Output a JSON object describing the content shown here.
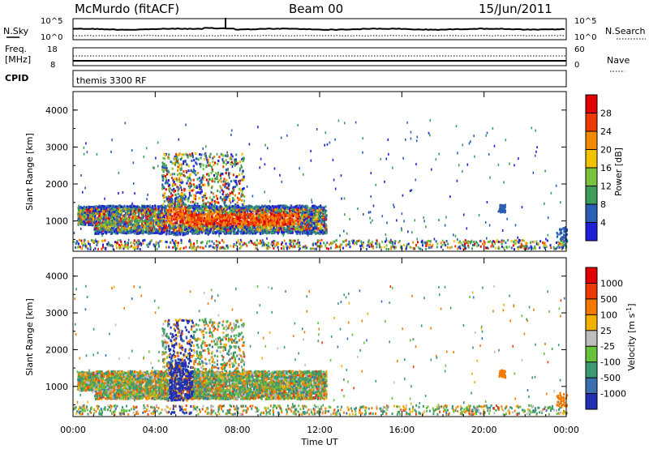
{
  "header": {
    "station": "McMurdo (fitACF)",
    "beam": "Beam 00",
    "date": "15/Jun/2011"
  },
  "top_panels": {
    "nsky_label": "N.Sky",
    "nsky_ticks": [
      "10^5",
      "10^0"
    ],
    "nsearch_label": "N.Search",
    "nsearch_ticks": [
      "10^5",
      "10^0"
    ],
    "freq_label_1": "Freq.",
    "freq_label_2": "[MHz]",
    "freq_ticks": [
      "18",
      "8"
    ],
    "nave_label": "Nave",
    "nave_ticks": [
      "60",
      "0"
    ],
    "cpid_label": "CPID",
    "cpid_value": "themis 3300 RF"
  },
  "chart_data": [
    {
      "type": "heatmap",
      "name": "power-panel",
      "ylabel": "Slant Range [km]",
      "y_ticks": [
        "1000",
        "2000",
        "3000",
        "4000"
      ],
      "ylim": [
        180,
        4500
      ],
      "x_ticks": [
        "00:00",
        "04:00",
        "08:00",
        "12:00",
        "16:00",
        "20:00",
        "00:00"
      ],
      "xlim_hours": [
        0,
        24
      ],
      "colorbar_label": "Power [dB]",
      "colorbar_ticks": [
        "4",
        "8",
        "12",
        "16",
        "20",
        "24",
        "28"
      ],
      "colorbar_colors": [
        "#1f1fd6",
        "#2a5fb4",
        "#3c9e5a",
        "#7ac23e",
        "#f2c200",
        "#f28a00",
        "#ee3a00",
        "#e00000"
      ]
    },
    {
      "type": "heatmap",
      "name": "velocity-panel",
      "ylabel": "Slant Range [km]",
      "y_ticks": [
        "1000",
        "2000",
        "3000",
        "4000"
      ],
      "ylim": [
        180,
        4500
      ],
      "x_ticks": [
        "00:00",
        "04:00",
        "08:00",
        "12:00",
        "16:00",
        "20:00",
        "00:00"
      ],
      "xlim_hours": [
        0,
        24
      ],
      "xlabel": "Time UT",
      "colorbar_label": "Velocity [m s^-1]",
      "colorbar_ticks": [
        "1000",
        "500",
        "100",
        "25",
        "-25",
        "-100",
        "-500",
        "-1000"
      ],
      "colorbar_colors": [
        "#2030b0",
        "#3a6fb0",
        "#3c9a70",
        "#66c23a",
        "#bdbdbd",
        "#f2b000",
        "#f27a00",
        "#ee3a00",
        "#e00000"
      ]
    }
  ]
}
